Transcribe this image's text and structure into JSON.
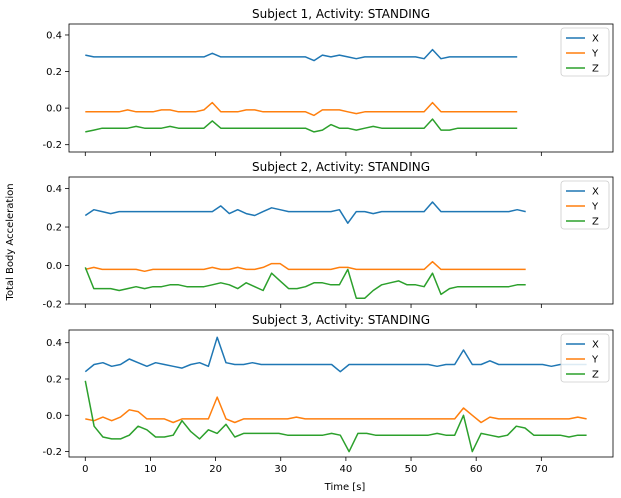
{
  "chart_data": {
    "type": "line",
    "shared_xlabel": "Time [s]",
    "shared_ylabel": "Total Body Acceleration",
    "sharex": true,
    "xlim": [
      -2.5,
      81
    ],
    "xticks": [
      0,
      10,
      20,
      30,
      40,
      50,
      60,
      70
    ],
    "legend_placement": "top-right",
    "grid": false,
    "colors": {
      "X": "#1f77b4",
      "Y": "#ff7f0e",
      "Z": "#2ca02c"
    },
    "panels": [
      {
        "title": "Subject 1, Activity: STANDING",
        "ylim": [
          -0.24,
          0.46
        ],
        "yticks": [
          -0.2,
          0.0,
          0.2,
          0.4
        ],
        "x": [
          0,
          1.3,
          2.6,
          3.9,
          5.2,
          6.5,
          7.8,
          9.1,
          10.4,
          11.7,
          13,
          14.3,
          15.6,
          16.9,
          18.2,
          19.5,
          20.8,
          22.1,
          23.4,
          24.7,
          26,
          27.3,
          28.6,
          29.9,
          31.2,
          32.5,
          33.8,
          35.1,
          36.4,
          37.7,
          39,
          40.3,
          41.6,
          42.9,
          44.2,
          45.5,
          46.8,
          48.1,
          49.4,
          50.7,
          52,
          53.3,
          54.6,
          55.9,
          57.2,
          58.5,
          59.8,
          61.1,
          62.4,
          63.7,
          65,
          66.3
        ],
        "series": [
          {
            "name": "X",
            "values": [
              0.29,
              0.28,
              0.28,
              0.28,
              0.28,
              0.28,
              0.28,
              0.28,
              0.28,
              0.28,
              0.28,
              0.28,
              0.28,
              0.28,
              0.28,
              0.3,
              0.28,
              0.28,
              0.28,
              0.28,
              0.28,
              0.28,
              0.28,
              0.28,
              0.28,
              0.28,
              0.28,
              0.26,
              0.29,
              0.28,
              0.29,
              0.28,
              0.27,
              0.28,
              0.28,
              0.28,
              0.28,
              0.28,
              0.28,
              0.28,
              0.27,
              0.32,
              0.27,
              0.28,
              0.28,
              0.28,
              0.28,
              0.28,
              0.28,
              0.28,
              0.28,
              0.28
            ]
          },
          {
            "name": "Y",
            "values": [
              -0.02,
              -0.02,
              -0.02,
              -0.02,
              -0.02,
              -0.01,
              -0.02,
              -0.02,
              -0.02,
              -0.01,
              -0.01,
              -0.02,
              -0.02,
              -0.02,
              -0.01,
              0.03,
              -0.02,
              -0.02,
              -0.02,
              -0.01,
              -0.01,
              -0.02,
              -0.02,
              -0.02,
              -0.02,
              -0.02,
              -0.02,
              -0.04,
              -0.01,
              -0.01,
              -0.01,
              -0.02,
              -0.03,
              -0.02,
              -0.02,
              -0.02,
              -0.02,
              -0.02,
              -0.02,
              -0.02,
              -0.02,
              0.03,
              -0.02,
              -0.02,
              -0.02,
              -0.02,
              -0.02,
              -0.02,
              -0.02,
              -0.02,
              -0.02,
              -0.02
            ]
          },
          {
            "name": "Z",
            "values": [
              -0.13,
              -0.12,
              -0.11,
              -0.11,
              -0.11,
              -0.11,
              -0.1,
              -0.11,
              -0.11,
              -0.11,
              -0.1,
              -0.11,
              -0.11,
              -0.11,
              -0.11,
              -0.07,
              -0.11,
              -0.11,
              -0.11,
              -0.11,
              -0.11,
              -0.11,
              -0.11,
              -0.11,
              -0.11,
              -0.11,
              -0.11,
              -0.13,
              -0.12,
              -0.09,
              -0.11,
              -0.11,
              -0.12,
              -0.11,
              -0.1,
              -0.11,
              -0.11,
              -0.11,
              -0.11,
              -0.11,
              -0.11,
              -0.06,
              -0.12,
              -0.12,
              -0.11,
              -0.11,
              -0.11,
              -0.11,
              -0.11,
              -0.11,
              -0.11,
              -0.11
            ]
          }
        ]
      },
      {
        "title": "Subject 2, Activity: STANDING",
        "ylim": [
          -0.2,
          0.46
        ],
        "yticks": [
          -0.2,
          0.0,
          0.2,
          0.4
        ],
        "x": [
          0,
          1.3,
          2.6,
          3.9,
          5.2,
          6.5,
          7.8,
          9.1,
          10.4,
          11.7,
          13,
          14.3,
          15.6,
          16.9,
          18.2,
          19.5,
          20.8,
          22.1,
          23.4,
          24.7,
          26,
          27.3,
          28.6,
          29.9,
          31.2,
          32.5,
          33.8,
          35.1,
          36.4,
          37.7,
          39,
          40.3,
          41.6,
          42.9,
          44.2,
          45.5,
          46.8,
          48.1,
          49.4,
          50.7,
          52,
          53.3,
          54.6,
          55.9,
          57.2,
          58.5,
          59.8,
          61.1,
          62.4,
          63.7,
          65,
          66.3,
          67.6
        ],
        "series": [
          {
            "name": "X",
            "values": [
              0.26,
              0.29,
              0.28,
              0.27,
              0.28,
              0.28,
              0.28,
              0.28,
              0.28,
              0.28,
              0.28,
              0.28,
              0.28,
              0.28,
              0.28,
              0.28,
              0.31,
              0.27,
              0.29,
              0.27,
              0.26,
              0.28,
              0.3,
              0.29,
              0.28,
              0.28,
              0.28,
              0.28,
              0.28,
              0.28,
              0.29,
              0.22,
              0.28,
              0.28,
              0.27,
              0.28,
              0.28,
              0.28,
              0.28,
              0.28,
              0.28,
              0.33,
              0.28,
              0.28,
              0.28,
              0.28,
              0.28,
              0.28,
              0.28,
              0.28,
              0.28,
              0.29,
              0.28
            ]
          },
          {
            "name": "Y",
            "values": [
              -0.02,
              -0.01,
              -0.02,
              -0.02,
              -0.02,
              -0.02,
              -0.02,
              -0.03,
              -0.02,
              -0.02,
              -0.02,
              -0.02,
              -0.02,
              -0.02,
              -0.02,
              -0.01,
              -0.02,
              -0.02,
              -0.01,
              -0.02,
              -0.02,
              -0.01,
              0.01,
              0.01,
              -0.02,
              -0.02,
              -0.02,
              -0.02,
              -0.02,
              -0.02,
              -0.01,
              -0.01,
              -0.02,
              -0.02,
              -0.02,
              -0.02,
              -0.02,
              -0.02,
              -0.02,
              -0.02,
              -0.02,
              0.02,
              -0.02,
              -0.02,
              -0.02,
              -0.02,
              -0.02,
              -0.02,
              -0.02,
              -0.02,
              -0.02,
              -0.02,
              -0.02
            ]
          },
          {
            "name": "Z",
            "values": [
              -0.01,
              -0.12,
              -0.12,
              -0.12,
              -0.13,
              -0.12,
              -0.11,
              -0.12,
              -0.11,
              -0.11,
              -0.1,
              -0.1,
              -0.11,
              -0.11,
              -0.11,
              -0.1,
              -0.09,
              -0.1,
              -0.12,
              -0.09,
              -0.11,
              -0.13,
              -0.04,
              -0.08,
              -0.12,
              -0.12,
              -0.11,
              -0.09,
              -0.09,
              -0.1,
              -0.1,
              -0.02,
              -0.17,
              -0.17,
              -0.13,
              -0.1,
              -0.09,
              -0.08,
              -0.1,
              -0.1,
              -0.11,
              -0.04,
              -0.15,
              -0.12,
              -0.11,
              -0.11,
              -0.11,
              -0.11,
              -0.11,
              -0.11,
              -0.11,
              -0.1,
              -0.1
            ]
          }
        ]
      },
      {
        "title": "Subject 3, Activity: STANDING",
        "ylim": [
          -0.23,
          0.47
        ],
        "yticks": [
          -0.2,
          0.0,
          0.2,
          0.4
        ],
        "x": [
          0,
          1.35,
          2.7,
          4.05,
          5.4,
          6.75,
          8.1,
          9.45,
          10.8,
          12.15,
          13.5,
          14.85,
          16.2,
          17.55,
          18.9,
          20.25,
          21.6,
          22.95,
          24.3,
          25.65,
          27,
          28.35,
          29.7,
          31.05,
          32.4,
          33.75,
          35.1,
          36.45,
          37.8,
          39.15,
          40.5,
          41.85,
          43.2,
          44.55,
          45.9,
          47.25,
          48.6,
          49.95,
          51.3,
          52.65,
          54,
          55.35,
          56.7,
          58.05,
          59.4,
          60.75,
          62.1,
          63.45,
          64.8,
          66.15,
          67.5,
          68.85,
          70.2,
          71.55,
          72.9,
          74.25,
          75.6,
          76.95
        ],
        "series": [
          {
            "name": "X",
            "values": [
              0.24,
              0.28,
              0.29,
              0.27,
              0.28,
              0.31,
              0.29,
              0.27,
              0.29,
              0.28,
              0.27,
              0.26,
              0.28,
              0.29,
              0.27,
              0.43,
              0.29,
              0.28,
              0.28,
              0.29,
              0.28,
              0.28,
              0.28,
              0.28,
              0.28,
              0.28,
              0.28,
              0.28,
              0.28,
              0.24,
              0.28,
              0.28,
              0.28,
              0.28,
              0.28,
              0.28,
              0.28,
              0.28,
              0.28,
              0.28,
              0.27,
              0.28,
              0.28,
              0.36,
              0.28,
              0.28,
              0.3,
              0.28,
              0.28,
              0.28,
              0.28,
              0.28,
              0.28,
              0.27,
              0.28,
              0.28,
              0.28,
              0.28
            ]
          },
          {
            "name": "Y",
            "values": [
              -0.02,
              -0.03,
              -0.01,
              -0.03,
              -0.01,
              0.03,
              0.02,
              -0.02,
              -0.02,
              -0.02,
              -0.04,
              -0.02,
              -0.02,
              -0.02,
              -0.02,
              0.1,
              -0.02,
              -0.04,
              -0.02,
              -0.02,
              -0.02,
              -0.02,
              -0.02,
              -0.02,
              -0.01,
              -0.02,
              -0.02,
              -0.02,
              -0.02,
              -0.02,
              -0.02,
              -0.02,
              -0.02,
              -0.02,
              -0.02,
              -0.02,
              -0.02,
              -0.02,
              -0.02,
              -0.02,
              -0.02,
              -0.02,
              -0.02,
              0.04,
              0.0,
              -0.04,
              -0.01,
              -0.02,
              -0.02,
              -0.02,
              -0.02,
              -0.02,
              -0.02,
              -0.02,
              -0.02,
              -0.02,
              -0.01,
              -0.02
            ]
          },
          {
            "name": "Z",
            "values": [
              0.19,
              -0.06,
              -0.12,
              -0.13,
              -0.13,
              -0.11,
              -0.06,
              -0.08,
              -0.12,
              -0.12,
              -0.11,
              -0.03,
              -0.09,
              -0.13,
              -0.08,
              -0.1,
              -0.05,
              -0.12,
              -0.1,
              -0.1,
              -0.1,
              -0.1,
              -0.1,
              -0.11,
              -0.11,
              -0.11,
              -0.11,
              -0.11,
              -0.1,
              -0.11,
              -0.2,
              -0.1,
              -0.1,
              -0.11,
              -0.11,
              -0.11,
              -0.11,
              -0.11,
              -0.11,
              -0.11,
              -0.1,
              -0.11,
              -0.11,
              0.0,
              -0.2,
              -0.1,
              -0.11,
              -0.12,
              -0.11,
              -0.06,
              -0.07,
              -0.11,
              -0.11,
              -0.11,
              -0.11,
              -0.12,
              -0.11,
              -0.11
            ]
          }
        ]
      }
    ]
  }
}
